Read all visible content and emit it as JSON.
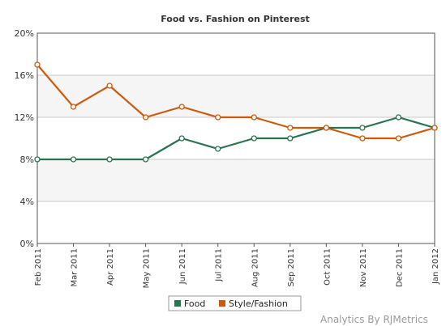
{
  "chart_data": {
    "type": "line",
    "title": "Food vs. Fashion on Pinterest",
    "categories": [
      "Feb 2011",
      "Mar 2011",
      "Apr 2011",
      "May 2011",
      "Jun 2011",
      "Jul 2011",
      "Aug 2011",
      "Sep 2011",
      "Oct 2011",
      "Nov 2011",
      "Dec 2011",
      "Jan 2012"
    ],
    "ylim": [
      0,
      20
    ],
    "yticks": [
      "0%",
      "4%",
      "8%",
      "12%",
      "16%",
      "20%"
    ],
    "ytick_values": [
      0,
      4,
      8,
      12,
      16,
      20
    ],
    "y_unit": "%",
    "grid": true,
    "banded_background": true,
    "legend_position": "bottom-center",
    "series": [
      {
        "name": "Food",
        "color": "#2a7350",
        "values": [
          8,
          8,
          8,
          8,
          10,
          9,
          10,
          10,
          11,
          11,
          12,
          11
        ]
      },
      {
        "name": "Style/Fashion",
        "color": "#cc5a0c",
        "values": [
          17,
          13,
          15,
          12,
          13,
          12,
          12,
          11,
          11,
          10,
          10,
          11
        ]
      }
    ]
  },
  "credit": {
    "prefix": "Analytics By ",
    "brand": "RJMetrics"
  }
}
